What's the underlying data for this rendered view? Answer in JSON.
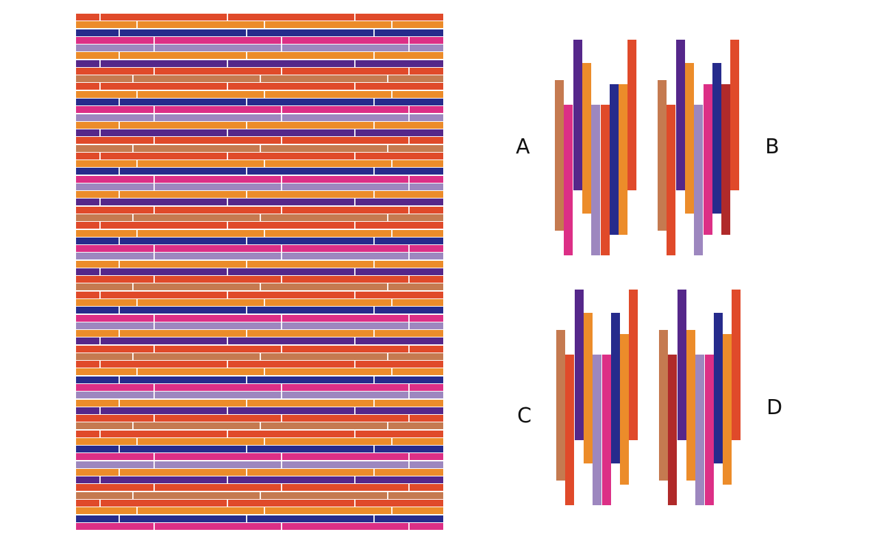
{
  "colors": {
    "red": "#e04a2a",
    "orange": "#ec8c2a",
    "navy": "#262b8c",
    "pink": "#dc2f86",
    "lavender": "#9d87bf",
    "purple": "#55278a",
    "tan": "#c57a50",
    "darkred": "#b02a2a"
  },
  "pattern_rows": [
    "red",
    "orange",
    "navy",
    "pink",
    "lavender",
    "orange",
    "purple",
    "red",
    "tan"
  ],
  "options": [
    {
      "label": "A",
      "bars": [
        "tan",
        "pink",
        "purple",
        "orange",
        "lavender",
        "red",
        "navy",
        "orange",
        "red"
      ]
    },
    {
      "label": "B",
      "bars": [
        "tan",
        "red",
        "purple",
        "orange",
        "lavender",
        "pink",
        "navy",
        "darkred",
        "red"
      ]
    },
    {
      "label": "C",
      "bars": [
        "tan",
        "red",
        "purple",
        "orange",
        "lavender",
        "pink",
        "navy",
        "orange",
        "red"
      ]
    },
    {
      "label": "D",
      "bars": [
        "tan",
        "darkred",
        "purple",
        "orange",
        "lavender",
        "pink",
        "navy",
        "orange",
        "red"
      ]
    }
  ]
}
